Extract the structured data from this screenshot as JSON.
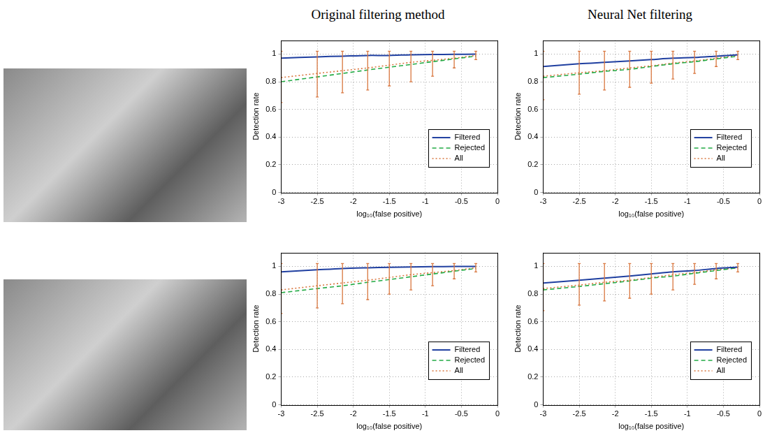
{
  "column_titles": [
    "Original filtering method",
    "Neural Net filtering"
  ],
  "chart_data": [
    {
      "type": "line",
      "xlabel": "log₁₀(false positive)",
      "ylabel": "Detection rate",
      "x": [
        -3,
        -2.5,
        -2.15,
        -1.8,
        -1.5,
        -1.2,
        -0.9,
        -0.6,
        -0.3
      ],
      "xlim": [
        -3,
        0
      ],
      "xticks": [
        -3,
        -2.5,
        -2,
        -1.5,
        -1,
        -0.5,
        0
      ],
      "ylim": [
        0,
        1.1
      ],
      "yticks": [
        0,
        0.2,
        0.4,
        0.6,
        0.8,
        1
      ],
      "grid": true,
      "legend": "lower right",
      "series": [
        {
          "name": "Filtered",
          "color": "#1f3fa0",
          "line_style": "solid",
          "values": [
            0.97,
            0.98,
            0.985,
            0.99,
            0.99,
            0.995,
            0.997,
            0.998,
            1.0
          ]
        },
        {
          "name": "Rejected",
          "color": "#22aa44",
          "line_style": "dashed",
          "values": [
            0.8,
            0.835,
            0.86,
            0.885,
            0.905,
            0.925,
            0.945,
            0.965,
            0.985
          ]
        },
        {
          "name": "All",
          "color": "#d9773f",
          "line_style": "dotted",
          "values": [
            0.83,
            0.86,
            0.88,
            0.9,
            0.92,
            0.94,
            0.955,
            0.97,
            0.99
          ],
          "error_low": [
            0.65,
            0.69,
            0.72,
            0.74,
            0.77,
            0.8,
            0.84,
            0.9,
            0.96
          ],
          "error_high": [
            1.02,
            1.02,
            1.02,
            1.02,
            1.02,
            1.02,
            1.02,
            1.02,
            1.02
          ]
        }
      ]
    },
    {
      "type": "line",
      "xlabel": "log₁₀(false positive)",
      "ylabel": "Detection rate",
      "x": [
        -3,
        -2.5,
        -2.15,
        -1.8,
        -1.5,
        -1.2,
        -0.9,
        -0.6,
        -0.3
      ],
      "xlim": [
        -3,
        0
      ],
      "xticks": [
        -3,
        -2.5,
        -2,
        -1.5,
        -1,
        -0.5,
        0
      ],
      "ylim": [
        0,
        1.1
      ],
      "yticks": [
        0,
        0.2,
        0.4,
        0.6,
        0.8,
        1
      ],
      "grid": true,
      "legend": "lower right",
      "series": [
        {
          "name": "Filtered",
          "color": "#1f3fa0",
          "line_style": "solid",
          "values": [
            0.91,
            0.93,
            0.94,
            0.95,
            0.96,
            0.97,
            0.975,
            0.985,
            0.995
          ]
        },
        {
          "name": "Rejected",
          "color": "#22aa44",
          "line_style": "dashed",
          "values": [
            0.83,
            0.855,
            0.875,
            0.89,
            0.91,
            0.93,
            0.945,
            0.965,
            0.985
          ]
        },
        {
          "name": "All",
          "color": "#d9773f",
          "line_style": "dotted",
          "values": [
            0.84,
            0.865,
            0.88,
            0.9,
            0.915,
            0.935,
            0.95,
            0.97,
            0.99
          ],
          "error_low": [
            0.67,
            0.71,
            0.74,
            0.76,
            0.79,
            0.82,
            0.86,
            0.91,
            0.96
          ],
          "error_high": [
            1.02,
            1.02,
            1.02,
            1.02,
            1.02,
            1.02,
            1.02,
            1.02,
            1.02
          ]
        }
      ]
    },
    {
      "type": "line",
      "xlabel": "log₁₀(false positive)",
      "ylabel": "Detection rate",
      "x": [
        -3,
        -2.5,
        -2.15,
        -1.8,
        -1.5,
        -1.2,
        -0.9,
        -0.6,
        -0.3
      ],
      "xlim": [
        -3,
        0
      ],
      "xticks": [
        -3,
        -2.5,
        -2,
        -1.5,
        -1,
        -0.5,
        0
      ],
      "ylim": [
        0,
        1.1
      ],
      "yticks": [
        0,
        0.2,
        0.4,
        0.6,
        0.8,
        1
      ],
      "grid": true,
      "legend": "lower right",
      "series": [
        {
          "name": "Filtered",
          "color": "#1f3fa0",
          "line_style": "solid",
          "values": [
            0.96,
            0.975,
            0.985,
            0.99,
            0.993,
            0.996,
            0.998,
            0.999,
            1.0
          ]
        },
        {
          "name": "Rejected",
          "color": "#22aa44",
          "line_style": "dashed",
          "values": [
            0.81,
            0.84,
            0.86,
            0.885,
            0.905,
            0.925,
            0.945,
            0.965,
            0.985
          ]
        },
        {
          "name": "All",
          "color": "#d9773f",
          "line_style": "dotted",
          "values": [
            0.83,
            0.86,
            0.88,
            0.9,
            0.92,
            0.94,
            0.955,
            0.97,
            0.99
          ],
          "error_low": [
            0.66,
            0.7,
            0.73,
            0.76,
            0.8,
            0.83,
            0.86,
            0.91,
            0.96
          ],
          "error_high": [
            1.02,
            1.02,
            1.02,
            1.02,
            1.02,
            1.02,
            1.02,
            1.02,
            1.02
          ]
        }
      ]
    },
    {
      "type": "line",
      "xlabel": "log₁₀(false positive)",
      "ylabel": "Detection rate",
      "x": [
        -3,
        -2.5,
        -2.15,
        -1.8,
        -1.5,
        -1.2,
        -0.9,
        -0.6,
        -0.3
      ],
      "xlim": [
        -3,
        0
      ],
      "xticks": [
        -3,
        -2.5,
        -2,
        -1.5,
        -1,
        -0.5,
        0
      ],
      "ylim": [
        0,
        1.1
      ],
      "yticks": [
        0,
        0.2,
        0.4,
        0.6,
        0.8,
        1
      ],
      "grid": true,
      "legend": "lower right",
      "series": [
        {
          "name": "Filtered",
          "color": "#1f3fa0",
          "line_style": "solid",
          "values": [
            0.88,
            0.9,
            0.915,
            0.93,
            0.945,
            0.96,
            0.97,
            0.985,
            0.995
          ]
        },
        {
          "name": "Rejected",
          "color": "#22aa44",
          "line_style": "dashed",
          "values": [
            0.83,
            0.855,
            0.875,
            0.895,
            0.915,
            0.93,
            0.95,
            0.97,
            0.99
          ]
        },
        {
          "name": "All",
          "color": "#d9773f",
          "line_style": "dotted",
          "values": [
            0.84,
            0.865,
            0.885,
            0.9,
            0.92,
            0.94,
            0.955,
            0.975,
            0.99
          ],
          "error_low": [
            0.68,
            0.72,
            0.75,
            0.77,
            0.8,
            0.83,
            0.87,
            0.91,
            0.96
          ],
          "error_high": [
            1.02,
            1.02,
            1.02,
            1.02,
            1.02,
            1.02,
            1.02,
            1.02,
            1.02
          ]
        }
      ]
    }
  ]
}
